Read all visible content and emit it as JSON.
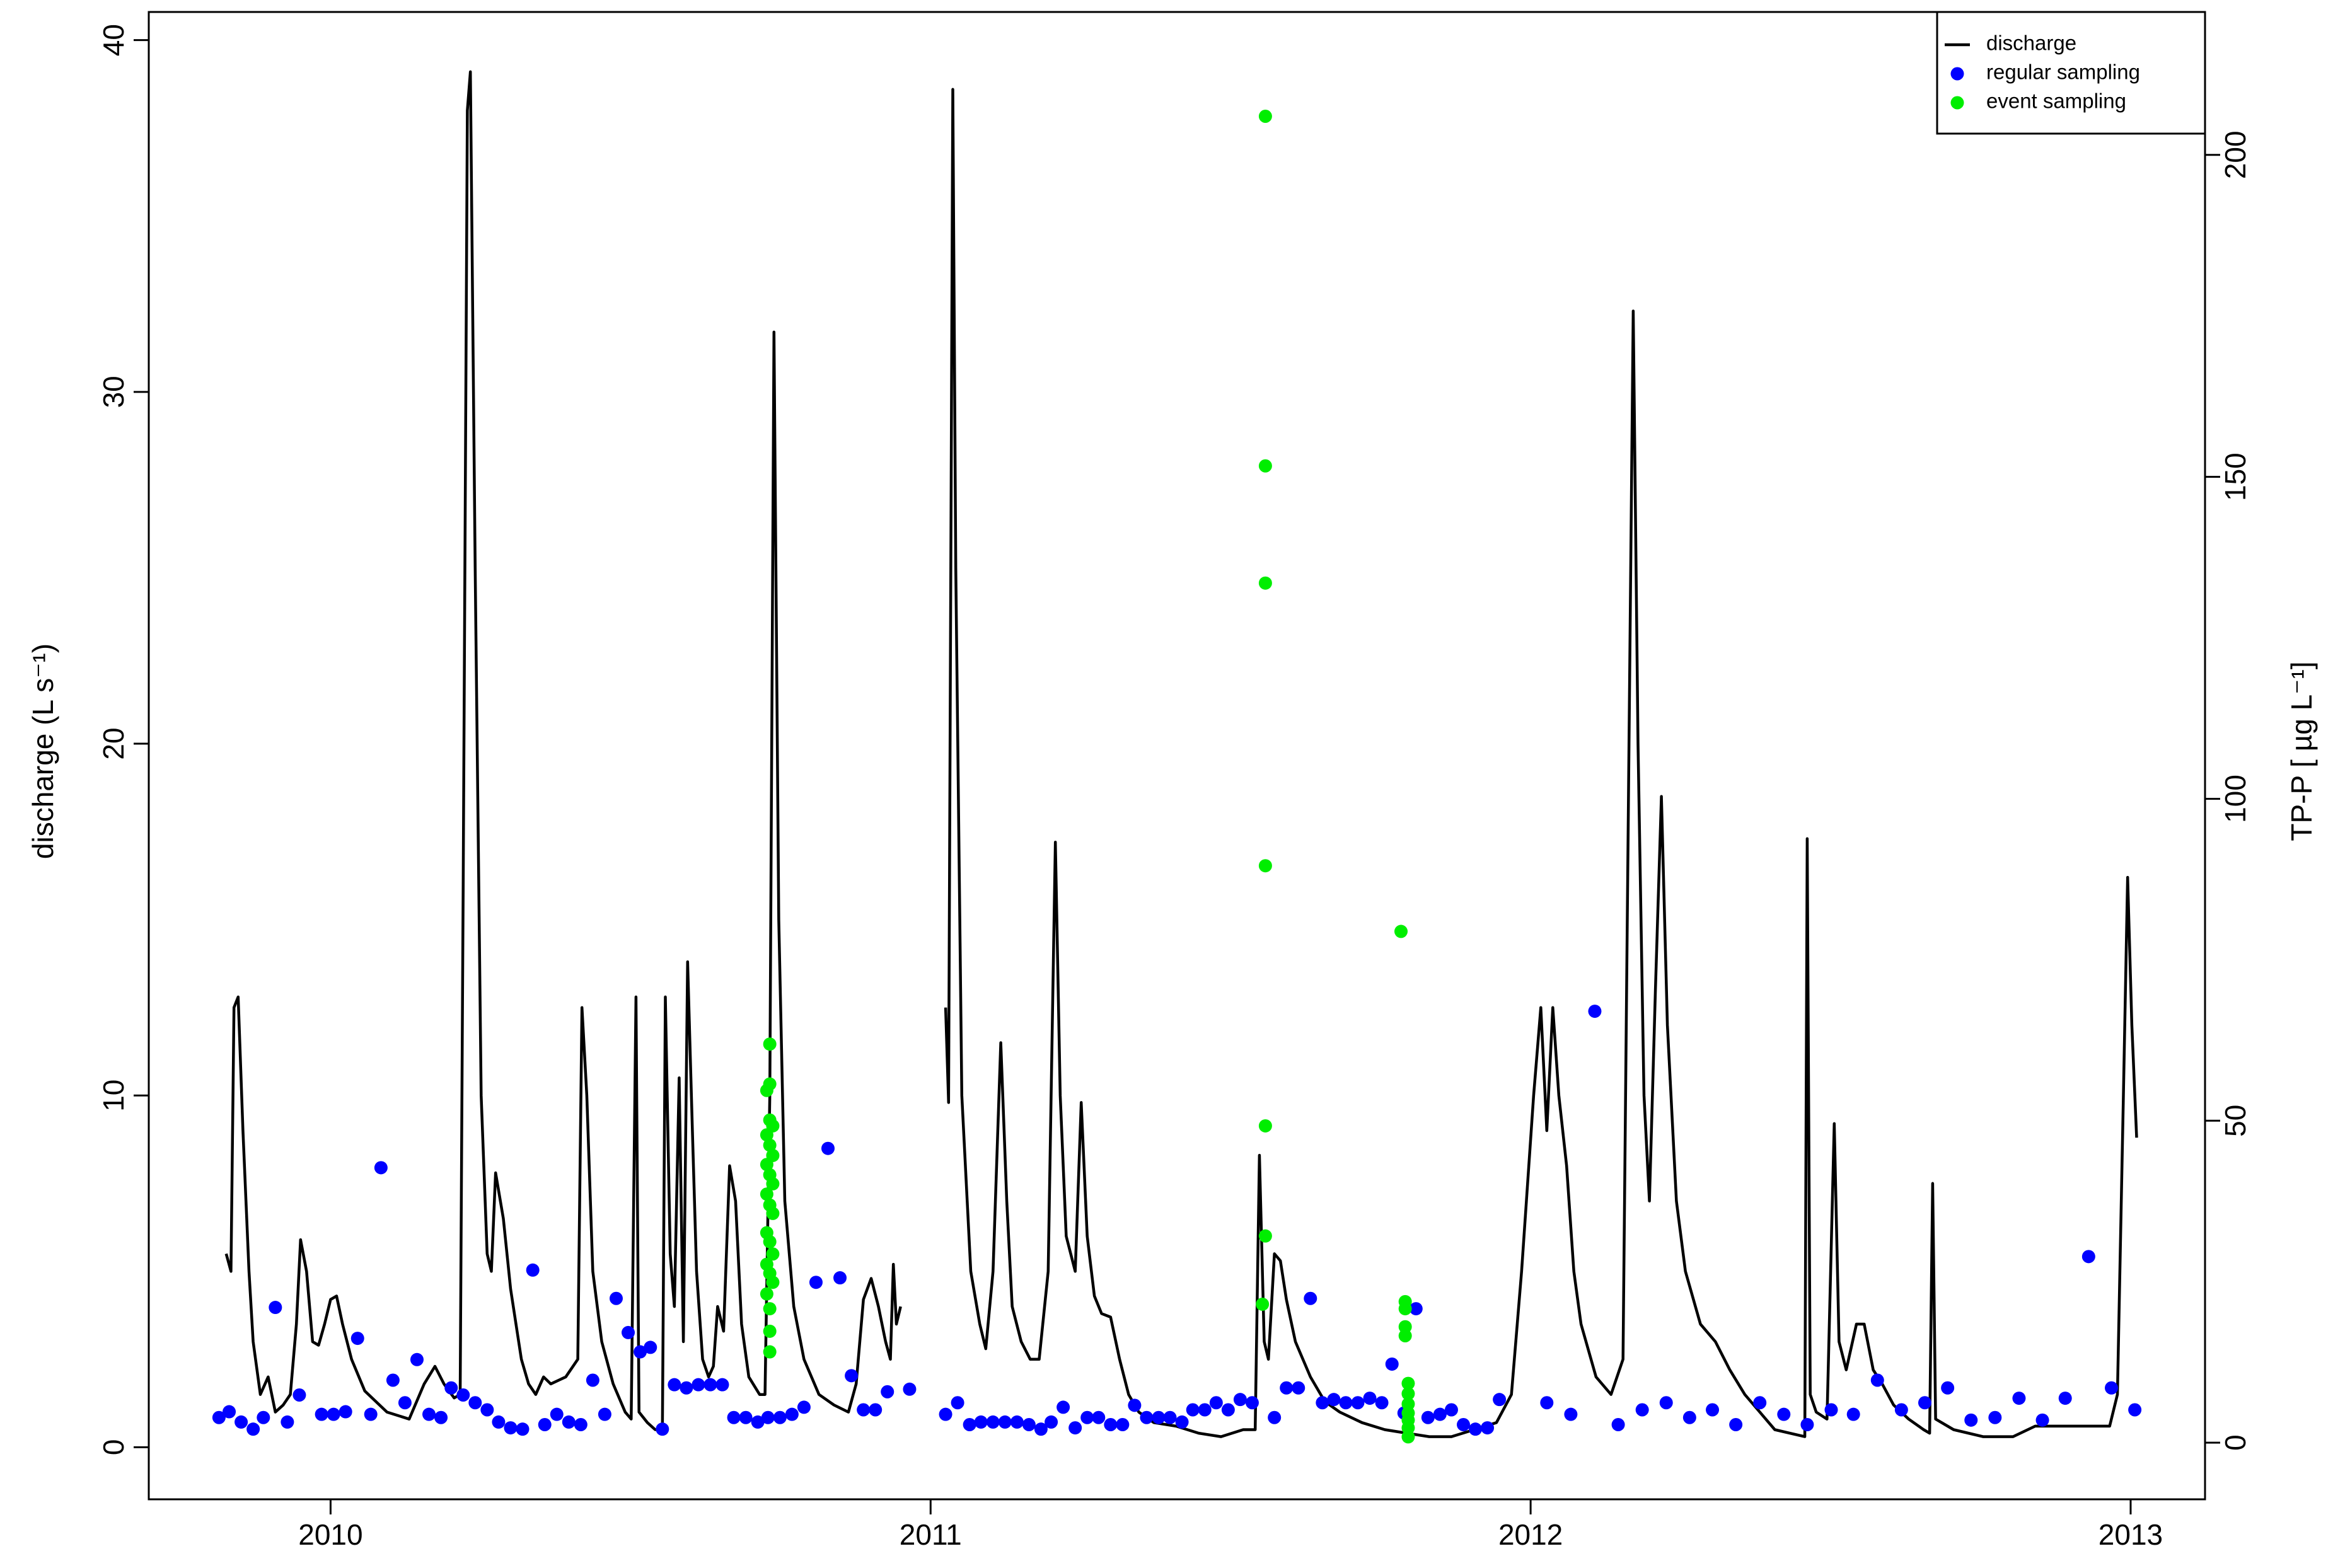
{
  "chart_data": {
    "type": "line",
    "y_label": "discharge (L s⁻¹)",
    "y2_label": "TP-P [ µg L⁻¹]",
    "legend": "top right",
    "xlim": [
      2009.697,
      2013.124
    ],
    "xticks": [
      2010,
      2011,
      2012,
      2013
    ],
    "ylim": [
      -1.48,
      40.8
    ],
    "yticks": [
      0,
      10,
      20,
      30,
      40
    ],
    "y2lim": [
      -8.8,
      222.2
    ],
    "y2ticks": [
      0,
      50,
      100,
      150,
      200
    ],
    "series": [
      {
        "name": "discharge",
        "type": "line",
        "color": "#000000",
        "x": [
          2009.826,
          2009.834,
          2009.839,
          2009.846,
          2009.854,
          2009.864,
          2009.871,
          2009.883,
          2009.896,
          2009.908,
          2009.921,
          2009.933,
          2009.943,
          2009.95,
          2009.96,
          2009.97,
          2009.98,
          2009.99,
          2010,
          2010.01,
          2010.02,
          2010.035,
          2010.057,
          2010.094,
          2010.131,
          2010.156,
          2010.174,
          2010.189,
          2010.206,
          2010.216,
          2010.221,
          2010.228,
          2010.233,
          2010.241,
          2010.251,
          2010.261,
          2010.268,
          2010.275,
          2010.288,
          2010.3,
          2010.318,
          2010.33,
          2010.342,
          2010.355,
          2010.367,
          2010.392,
          2010.412,
          2010.419,
          2010.427,
          2010.437,
          2010.452,
          2010.471,
          2010.491,
          2010.501,
          2010.509,
          2010.514,
          2010.528,
          2010.541,
          2010.553,
          2010.558,
          2010.566,
          2010.573,
          2010.581,
          2010.588,
          2010.595,
          2010.603,
          2010.61,
          2010.62,
          2010.63,
          2010.638,
          2010.645,
          2010.655,
          2010.665,
          2010.675,
          2010.685,
          2010.697,
          2010.715,
          2010.724,
          2010.732,
          2010.739,
          2010.747,
          2010.757,
          2010.772,
          2010.789,
          2010.814,
          2010.839,
          2010.863,
          2010.876,
          2010.888,
          2010.901,
          2010.913,
          2010.925,
          2010.933,
          2010.938,
          2010.943,
          2010.95,
          null,
          2011.025,
          2011.03,
          2011.037,
          2011.042,
          2011.052,
          2011.067,
          2011.082,
          2011.092,
          2011.104,
          2011.117,
          2011.127,
          2011.136,
          2011.151,
          2011.166,
          2011.181,
          2011.196,
          2011.208,
          2011.216,
          2011.226,
          2011.241,
          2011.251,
          2011.261,
          2011.273,
          2011.285,
          2011.3,
          2011.315,
          2011.33,
          2011.347,
          2011.372,
          2011.409,
          2011.447,
          2011.484,
          2011.521,
          2011.541,
          2011.548,
          2011.556,
          2011.563,
          2011.573,
          2011.583,
          2011.593,
          2011.608,
          2011.633,
          2011.657,
          2011.682,
          2011.719,
          2011.757,
          2011.794,
          2011.831,
          2011.868,
          2011.906,
          2011.943,
          2011.968,
          2011.985,
          2012.005,
          2012.017,
          2012.027,
          2012.037,
          2012.047,
          2012.06,
          2012.072,
          2012.084,
          2012.109,
          2012.134,
          2012.154,
          2012.164,
          2012.171,
          2012.179,
          2012.189,
          2012.198,
          2012.208,
          2012.218,
          2012.228,
          2012.243,
          2012.258,
          2012.283,
          2012.308,
          2012.332,
          2012.357,
          2012.382,
          2012.407,
          2012.432,
          2012.457,
          2012.461,
          2012.466,
          2012.476,
          2012.494,
          2012.506,
          2012.514,
          2012.526,
          2012.543,
          2012.556,
          2012.571,
          2012.586,
          2012.605,
          2012.63,
          2012.655,
          2012.665,
          2012.67,
          2012.675,
          2012.705,
          2012.754,
          2012.804,
          2012.841,
          2012.878,
          2012.928,
          2012.965,
          2012.978,
          2012.988,
          2012.995,
          2013.002,
          2013.01
        ],
        "values": [
          5.5,
          5.0,
          12.5,
          12.8,
          9,
          5,
          3,
          1.5,
          2,
          1.0,
          1.2,
          1.5,
          3.5,
          5.9,
          5,
          3,
          2.9,
          3.5,
          4.2,
          4.3,
          3.5,
          2.5,
          1.6,
          1.0,
          0.8,
          1.8,
          2.3,
          1.8,
          1.4,
          1.5,
          16,
          38,
          39.1,
          25,
          10,
          5.5,
          5.0,
          7.8,
          6.5,
          4.5,
          2.5,
          1.8,
          1.5,
          2.0,
          1.8,
          2.0,
          2.5,
          12.5,
          10,
          5,
          3,
          1.8,
          1.0,
          0.8,
          12.8,
          1.0,
          0.7,
          0.5,
          0.5,
          12.8,
          5.5,
          4,
          10.5,
          3,
          13.8,
          9,
          5,
          2.5,
          2.0,
          2.3,
          4,
          3.3,
          8.0,
          7,
          3.5,
          2,
          1.5,
          1.5,
          10,
          31.7,
          15,
          7,
          4,
          2.5,
          1.5,
          1.2,
          1.0,
          1.8,
          4.2,
          4.8,
          4.0,
          3.0,
          2.5,
          5.2,
          3.5,
          4.0,
          null,
          12.5,
          9.8,
          38.6,
          25,
          10,
          5,
          3.5,
          2.8,
          5,
          11.5,
          7,
          4,
          3,
          2.5,
          2.5,
          5,
          17.2,
          10,
          6,
          5,
          9.8,
          6,
          4.3,
          3.8,
          3.7,
          2.5,
          1.5,
          1.0,
          0.7,
          0.6,
          0.4,
          0.3,
          0.5,
          0.5,
          8.3,
          3,
          2.5,
          5.5,
          5.3,
          4.2,
          3,
          2,
          1.3,
          1.0,
          0.7,
          0.5,
          0.4,
          0.3,
          0.3,
          0.5,
          0.7,
          1.5,
          5,
          10,
          12.5,
          9,
          12.5,
          10,
          8,
          5,
          3.5,
          2,
          1.5,
          2.5,
          20,
          32.3,
          20,
          10,
          7,
          13,
          18.5,
          12,
          7,
          5,
          3.5,
          3,
          2.2,
          1.5,
          1.0,
          0.5,
          0.4,
          0.3,
          17.3,
          1.5,
          1.0,
          0.8,
          9.2,
          3,
          2.2,
          3.5,
          3.5,
          2.2,
          1.8,
          1.2,
          0.8,
          0.5,
          0.4,
          7.5,
          0.8,
          0.5,
          0.3,
          0.3,
          0.6,
          0.6,
          0.6,
          0.6,
          1.5,
          10,
          16.2,
          12,
          8.8
        ]
      },
      {
        "name": "regular sampling",
        "type": "scatter",
        "color": "#0000ff",
        "axis": "y2",
        "x": [
          2009.814,
          2009.831,
          2009.851,
          2009.871,
          2009.888,
          2009.908,
          2009.928,
          2009.948,
          2009.985,
          2010.005,
          2010.025,
          2010.045,
          2010.067,
          2010.084,
          2010.104,
          2010.124,
          2010.144,
          2010.164,
          2010.184,
          2010.201,
          2010.221,
          2010.241,
          2010.261,
          2010.28,
          2010.3,
          2010.32,
          2010.337,
          2010.357,
          2010.377,
          2010.397,
          2010.417,
          2010.437,
          2010.457,
          2010.476,
          2010.496,
          2010.516,
          2010.533,
          2010.553,
          2010.573,
          2010.593,
          2010.613,
          2010.633,
          2010.653,
          2010.672,
          2010.692,
          2010.712,
          2010.729,
          2010.749,
          2010.769,
          2010.789,
          2010.809,
          2010.829,
          2010.849,
          2010.868,
          2010.888,
          2010.908,
          2010.928,
          2010.965,
          2011.025,
          2011.045,
          2011.065,
          2011.084,
          2011.104,
          2011.124,
          2011.144,
          2011.164,
          2011.184,
          2011.201,
          2011.221,
          2011.241,
          2011.261,
          2011.28,
          2011.3,
          2011.32,
          2011.34,
          2011.36,
          2011.38,
          2011.399,
          2011.419,
          2011.437,
          2011.457,
          2011.476,
          2011.496,
          2011.516,
          2011.536,
          2011.573,
          2011.593,
          2011.613,
          2011.633,
          2011.653,
          2011.672,
          2011.692,
          2011.712,
          2011.732,
          2011.752,
          2011.769,
          2011.789,
          2011.809,
          2011.829,
          2011.849,
          2011.868,
          2011.888,
          2011.908,
          2011.928,
          2011.948,
          2012.027,
          2012.067,
          2012.107,
          2012.146,
          2012.186,
          2012.226,
          2012.265,
          2012.303,
          2012.342,
          2012.382,
          2012.422,
          2012.461,
          2012.501,
          2012.538,
          2012.578,
          2012.618,
          2012.657,
          2012.695,
          2012.734,
          2012.774,
          2012.814,
          2012.853,
          2012.891,
          2012.93,
          2012.968,
          2013.007
        ],
        "values": [
          3.9,
          4.8,
          3.2,
          2.1,
          3.9,
          21.0,
          3.2,
          7.4,
          4.4,
          4.4,
          4.8,
          16.2,
          4.4,
          42.7,
          9.7,
          6.2,
          12.9,
          4.4,
          3.9,
          8.5,
          7.4,
          6.2,
          5.1,
          3.2,
          2.3,
          2.1,
          26.8,
          2.8,
          4.4,
          3.2,
          2.8,
          9.7,
          4.4,
          22.4,
          17.1,
          14.1,
          14.8,
          2.1,
          9.0,
          8.5,
          9.0,
          9.0,
          9.0,
          3.9,
          3.9,
          3.2,
          3.9,
          3.9,
          4.4,
          5.5,
          24.9,
          45.7,
          25.6,
          10.4,
          5.1,
          5.1,
          7.9,
          8.3,
          4.4,
          6.2,
          2.8,
          3.2,
          3.2,
          3.2,
          3.2,
          2.8,
          2.1,
          3.2,
          5.5,
          2.3,
          3.9,
          3.9,
          2.8,
          2.8,
          5.8,
          3.9,
          3.9,
          3.9,
          3.2,
          5.1,
          5.1,
          6.2,
          5.1,
          6.7,
          6.2,
          3.9,
          8.5,
          8.5,
          22.4,
          6.2,
          6.7,
          6.2,
          6.2,
          6.9,
          6.2,
          12.2,
          4.6,
          20.8,
          3.9,
          4.4,
          5.1,
          2.8,
          2.1,
          2.3,
          6.7,
          6.2,
          4.4,
          67.0,
          2.8,
          5.1,
          6.2,
          3.9,
          5.1,
          2.8,
          6.2,
          4.4,
          2.8,
          5.1,
          4.4,
          9.7,
          5.1,
          6.2,
          8.5,
          3.5,
          3.9,
          6.9,
          3.5,
          6.9,
          28.9,
          8.5,
          5.1
        ]
      },
      {
        "name": "event sampling",
        "type": "scatter",
        "color": "#00ee00",
        "axis": "y2",
        "x": [
          2010.732,
          2010.732,
          2010.727,
          2010.732,
          2010.737,
          2010.727,
          2010.732,
          2010.737,
          2010.727,
          2010.732,
          2010.737,
          2010.727,
          2010.732,
          2010.737,
          2010.727,
          2010.732,
          2010.737,
          2010.727,
          2010.732,
          2010.737,
          2010.727,
          2010.732,
          2010.732,
          2010.732,
          2011.558,
          2011.558,
          2011.558,
          2011.558,
          2011.558,
          2011.558,
          2011.553,
          2011.784,
          2011.791,
          2011.791,
          2011.791,
          2011.791,
          2011.796,
          2011.796,
          2011.796,
          2011.796,
          2011.796,
          2011.796,
          2011.796
        ],
        "values": [
          61.9,
          55.7,
          54.7,
          50.1,
          49.2,
          47.8,
          46.2,
          44.6,
          43.2,
          41.6,
          40.2,
          38.6,
          36.9,
          35.6,
          32.6,
          31.2,
          29.3,
          27.7,
          26.3,
          24.9,
          23.1,
          20.8,
          17.3,
          14.1,
          206.0,
          151.7,
          133.5,
          89.6,
          49.2,
          32.1,
          21.5,
          79.4,
          21.9,
          20.8,
          18.0,
          16.6,
          9.2,
          7.6,
          6.0,
          4.6,
          3.5,
          2.3,
          0.9
        ]
      }
    ]
  }
}
